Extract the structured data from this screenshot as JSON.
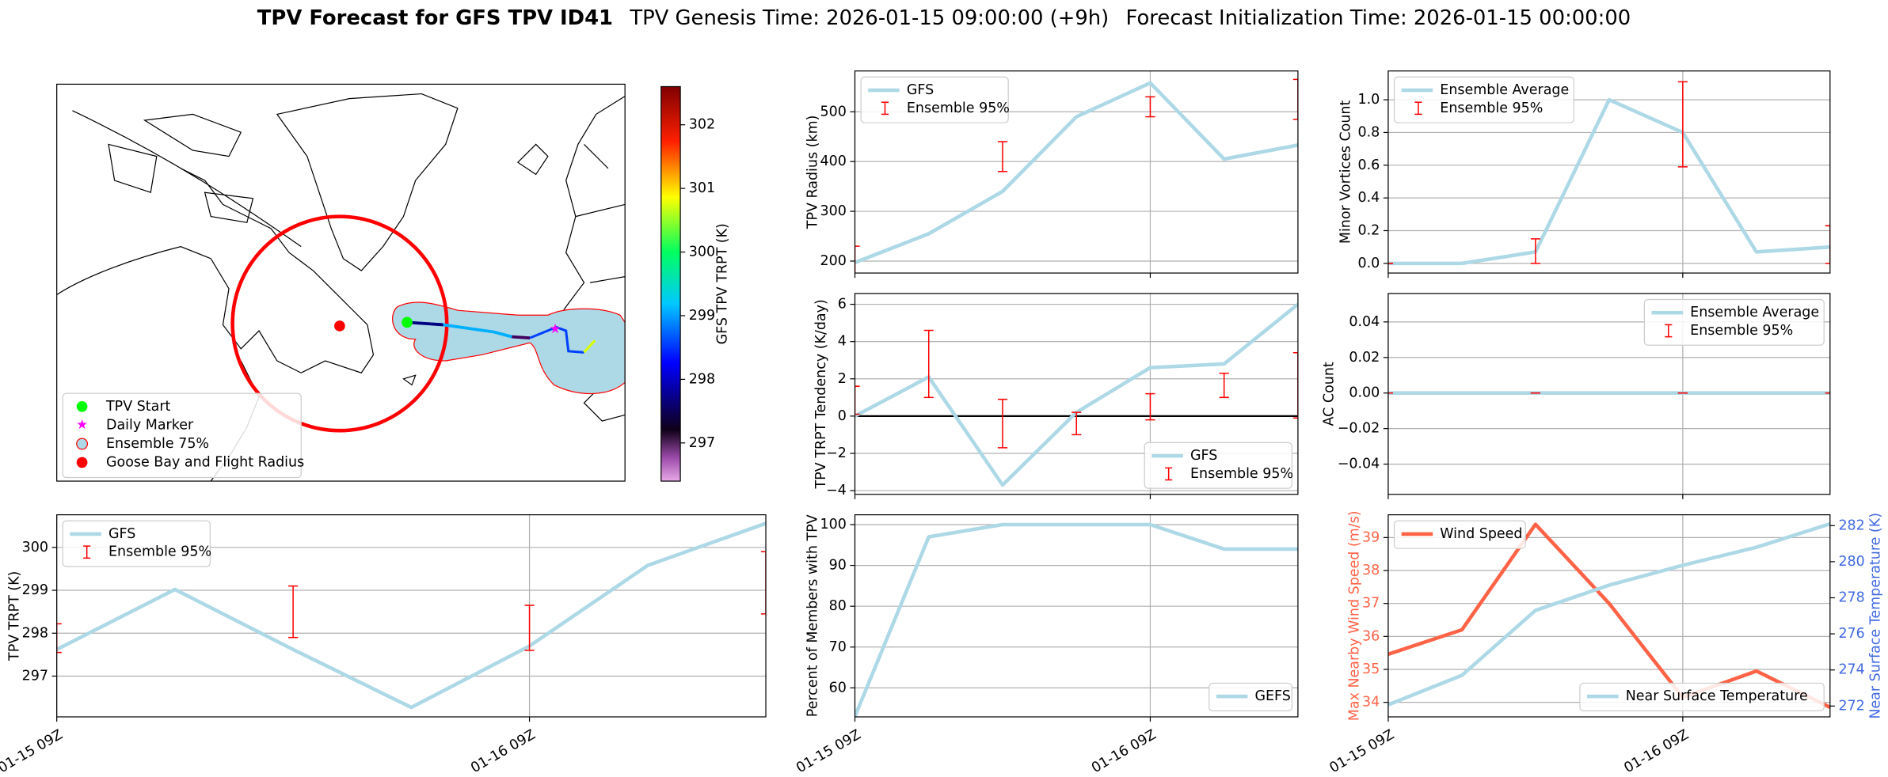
{
  "title": "TPV Forecast for GFS TPV ID41",
  "subtitle": [
    "TPV Genesis Time: 2026-01-15 09:00:00 (+9h)",
    "Forecast Initialization Time: 2026-01-15 00:00:00"
  ],
  "chart_data": [
    {
      "type": "map",
      "series": [
        {
          "name": "TPV Start",
          "color": "#00ff00"
        },
        {
          "name": "Daily Marker",
          "color": "#ff00ff"
        },
        {
          "name": "Ensemble 75%",
          "color": "#add8e6"
        },
        {
          "name": "Goose Bay and Flight Radius",
          "color": "#ff0000"
        }
      ],
      "legend": "lower left",
      "colorbar": {
        "label": "GFS TPV TRPT (K)",
        "lim": [
          296.4,
          302.6
        ],
        "ticks": [
          297,
          298,
          299,
          300,
          301,
          302
        ]
      }
    },
    {
      "type": "line",
      "ylabel": "TPV Radius (km)",
      "x": [
        "01-15 09Z",
        "01-15 15Z",
        "01-15 21Z",
        "01-16 03Z",
        "01-16 09Z",
        "01-16 15Z",
        "01-16 21Z"
      ],
      "xticks": [
        "01-15 09Z",
        "01-16 09Z"
      ],
      "xtick_labels": false,
      "ylim": [
        176,
        582
      ],
      "yticks": [
        200,
        300,
        400,
        500
      ],
      "grid": true,
      "legend": "upper left",
      "series": [
        {
          "name": "GFS",
          "type": "line",
          "color": "#add8e6",
          "values": [
            197,
            255,
            340,
            490,
            558,
            405,
            433
          ]
        },
        {
          "name": "Ensemble 95%",
          "type": "errorbar",
          "color": "#ff0000",
          "low": [
            170,
            null,
            380,
            null,
            490,
            null,
            485
          ],
          "high": [
            230,
            null,
            440,
            null,
            530,
            null,
            565
          ]
        }
      ]
    },
    {
      "type": "line",
      "ylabel": "TPV TRPT Tendency (K/day)",
      "x": [
        "01-15 09Z",
        "01-15 15Z",
        "01-15 21Z",
        "01-16 03Z",
        "01-16 09Z",
        "01-16 15Z",
        "01-16 21Z"
      ],
      "xticks": [
        "01-15 09Z",
        "01-16 09Z"
      ],
      "xtick_labels": false,
      "ylim": [
        -4.2,
        6.58
      ],
      "yticks": [
        {
          "value": -4,
          "label": "−4"
        },
        {
          "value": -2,
          "label": "−2"
        },
        0,
        2,
        4,
        6
      ],
      "grid": true,
      "hline": 0,
      "legend": "lower right",
      "series": [
        {
          "name": "GFS",
          "type": "line",
          "color": "#add8e6",
          "values": [
            0,
            2.1,
            -3.7,
            0.2,
            2.6,
            2.8,
            6.0
          ]
        },
        {
          "name": "Ensemble 95%",
          "type": "errorbar",
          "color": "#ff0000",
          "low": [
            0.1,
            1.0,
            -1.7,
            -1.0,
            -0.2,
            1.0,
            -0.1
          ],
          "high": [
            1.6,
            4.6,
            0.9,
            0.2,
            1.2,
            2.3,
            3.4
          ]
        }
      ]
    },
    {
      "type": "line",
      "ylabel": "Percent of Members with TPV",
      "x": [
        "01-15 09Z",
        "01-15 15Z",
        "01-15 21Z",
        "01-16 03Z",
        "01-16 09Z",
        "01-16 15Z",
        "01-16 21Z"
      ],
      "xticks": [
        "01-15 09Z",
        "01-16 09Z"
      ],
      "xtick_labels": true,
      "ylim": [
        52.9,
        102.4
      ],
      "yticks": [
        60,
        70,
        80,
        90,
        100
      ],
      "grid": true,
      "legend": "lower right",
      "series": [
        {
          "name": "GEFS",
          "type": "line",
          "color": "#add8e6",
          "values": [
            53,
            97,
            100,
            100,
            100,
            94,
            94
          ]
        }
      ]
    },
    {
      "type": "line",
      "ylabel": "Minor Vortices Count",
      "x": [
        "01-15 09Z",
        "01-15 15Z",
        "01-15 21Z",
        "01-16 03Z",
        "01-16 09Z",
        "01-16 15Z",
        "01-16 21Z"
      ],
      "xticks": [
        "01-15 09Z",
        "01-16 09Z"
      ],
      "xtick_labels": false,
      "ylim": [
        -0.059,
        1.176
      ],
      "yticks": [
        {
          "value": 0,
          "label": "0.0"
        },
        {
          "value": 0.2,
          "label": "0.2"
        },
        {
          "value": 0.4,
          "label": "0.4"
        },
        {
          "value": 0.6,
          "label": "0.6"
        },
        {
          "value": 0.8,
          "label": "0.8"
        },
        {
          "value": 1,
          "label": "1.0"
        }
      ],
      "grid": true,
      "legend": "upper left",
      "series": [
        {
          "name": "Ensemble Average",
          "type": "line",
          "color": "#add8e6",
          "values": [
            0,
            0,
            0.07,
            1.0,
            0.8,
            0.07,
            0.1
          ]
        },
        {
          "name": "Ensemble 95%",
          "type": "errorbar",
          "color": "#ff0000",
          "low": [
            0,
            null,
            0,
            null,
            0.59,
            null,
            0
          ],
          "high": [
            0,
            null,
            0.15,
            null,
            1.11,
            null,
            0.23
          ]
        }
      ]
    },
    {
      "type": "line",
      "ylabel": "AC Count",
      "x": [
        "01-15 09Z",
        "01-15 15Z",
        "01-15 21Z",
        "01-16 03Z",
        "01-16 09Z",
        "01-16 15Z",
        "01-16 21Z"
      ],
      "xticks": [
        "01-15 09Z",
        "01-16 09Z"
      ],
      "xtick_labels": false,
      "ylim": [
        -0.057,
        0.056
      ],
      "yticks": [
        {
          "value": -0.04,
          "label": "−0.04"
        },
        {
          "value": -0.02,
          "label": "−0.02"
        },
        {
          "value": 0,
          "label": "0.00"
        },
        {
          "value": 0.02,
          "label": "0.02"
        },
        {
          "value": 0.04,
          "label": "0.04"
        }
      ],
      "grid": true,
      "legend": "upper right",
      "series": [
        {
          "name": "Ensemble Average",
          "type": "line",
          "color": "#add8e6",
          "values": [
            0,
            0,
            0,
            0,
            0,
            0,
            0
          ]
        },
        {
          "name": "Ensemble 95%",
          "type": "errorbar",
          "color": "#ff0000",
          "low": [
            0,
            null,
            0,
            null,
            0,
            null,
            0
          ],
          "high": [
            0,
            null,
            0,
            null,
            0,
            null,
            0
          ]
        }
      ]
    },
    {
      "type": "line",
      "ylabel": "Max Nearby Wind Speed (m/s)",
      "ylabel_color": "#ff6347",
      "y2label": "Near Surface Temperature (K)",
      "y2label_color": "#4169e1",
      "x": [
        "01-15 09Z",
        "01-15 15Z",
        "01-15 21Z",
        "01-16 03Z",
        "01-16 09Z",
        "01-16 15Z",
        "01-16 21Z"
      ],
      "xticks": [
        "01-15 09Z",
        "01-16 09Z"
      ],
      "xtick_labels": true,
      "ylim": [
        33.56,
        39.69
      ],
      "yticks": [
        34,
        35,
        36,
        37,
        38,
        39
      ],
      "y2lim": [
        271.4,
        282.6
      ],
      "y2ticks": [
        272,
        274,
        276,
        278,
        280,
        282
      ],
      "grid": true,
      "legend": "upper left",
      "legend2": "lower right",
      "series": [
        {
          "name": "Wind Speed",
          "type": "line",
          "color": "#ff6347",
          "values": [
            35.46,
            36.2,
            39.4,
            37.0,
            34.15,
            34.95,
            33.85
          ]
        },
        {
          "name": "Near Surface Temperature",
          "type": "line",
          "axis": "y2",
          "color": "#add8e6",
          "values": [
            272.07,
            273.7,
            277.3,
            278.7,
            279.8,
            280.8,
            282.1
          ]
        }
      ]
    },
    {
      "type": "line",
      "ylabel": "TPV TRPT (K)",
      "x": [
        "01-15 09Z",
        "01-15 15Z",
        "01-15 21Z",
        "01-16 03Z",
        "01-16 09Z",
        "01-16 15Z",
        "01-16 21Z"
      ],
      "xticks": [
        "01-15 09Z",
        "01-16 09Z"
      ],
      "xtick_labels": true,
      "ylim": [
        296.05,
        300.76
      ],
      "yticks": [
        297,
        298,
        299,
        300
      ],
      "grid": true,
      "legend": "upper left",
      "series": [
        {
          "name": "GFS",
          "type": "line",
          "color": "#add8e6",
          "values": [
            297.62,
            299.02,
            297.62,
            296.27,
            297.7,
            299.58,
            300.56
          ]
        },
        {
          "name": "Ensemble 95%",
          "type": "errorbar",
          "color": "#ff0000",
          "low": [
            297.55,
            null,
            297.9,
            null,
            297.6,
            null,
            298.45
          ],
          "high": [
            298.22,
            null,
            299.1,
            null,
            298.65,
            null,
            299.9
          ]
        }
      ]
    }
  ]
}
